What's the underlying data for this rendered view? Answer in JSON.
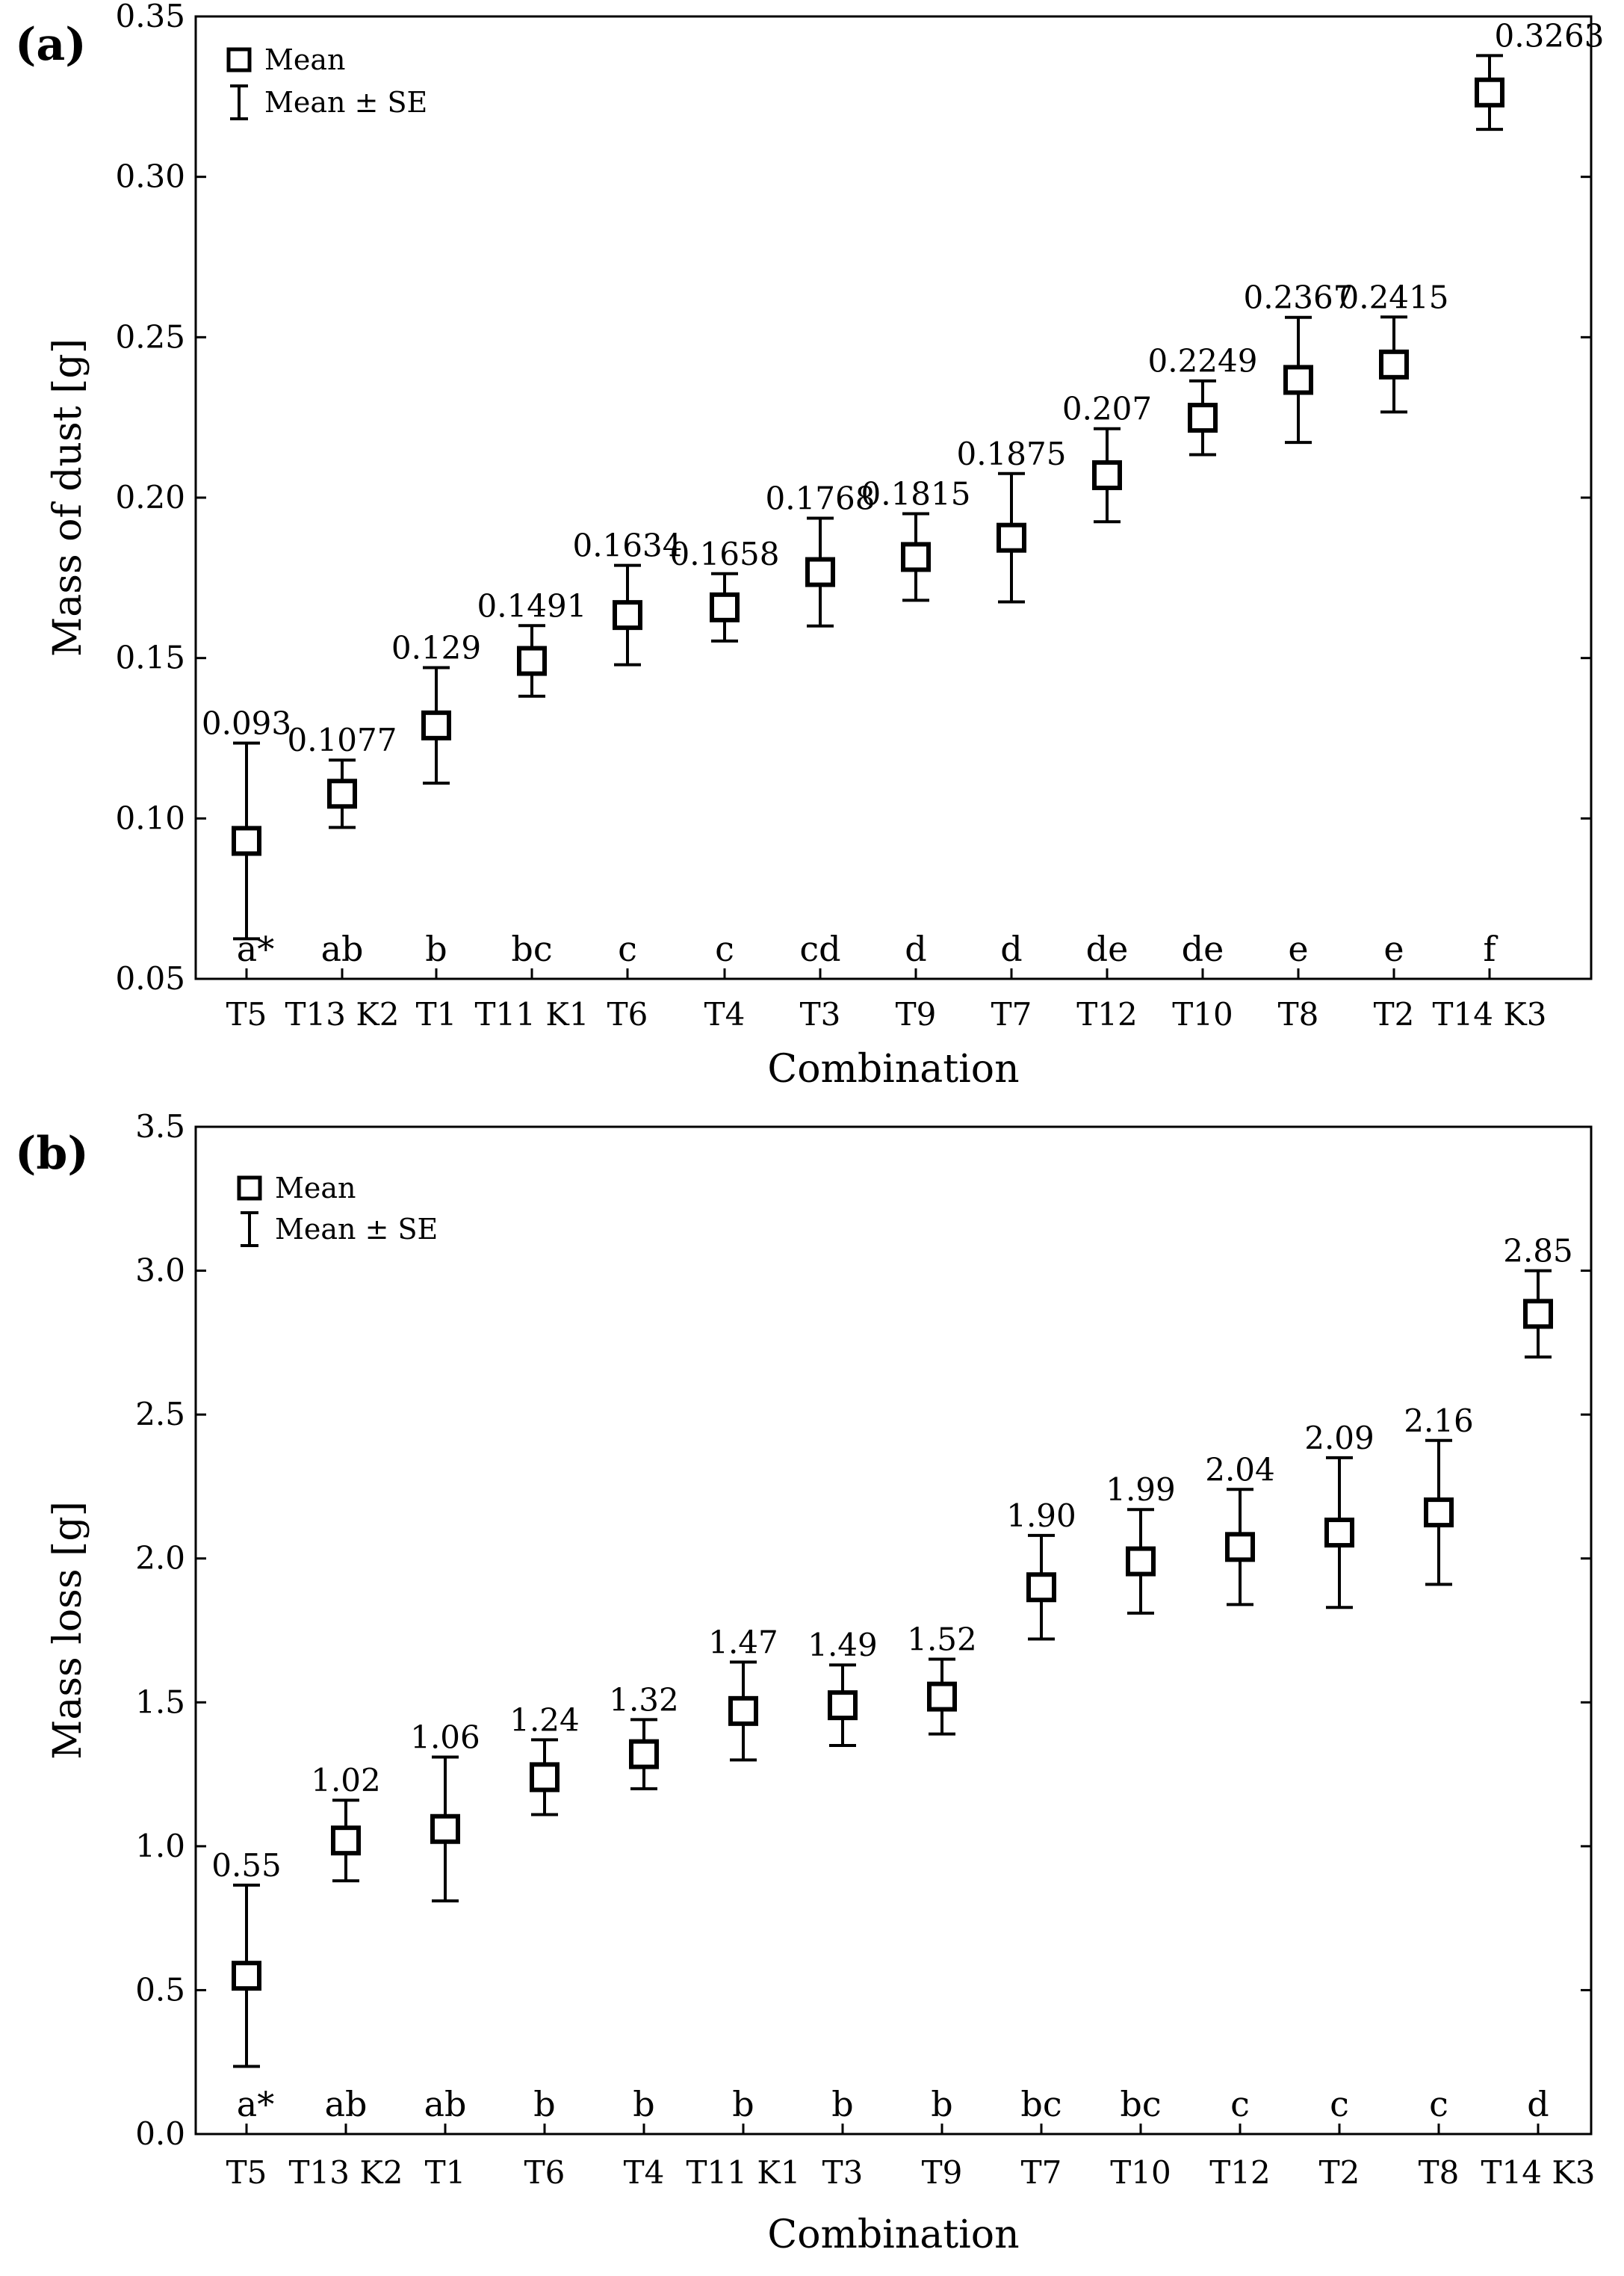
{
  "chart_data": [
    {
      "type": "scatter",
      "panel_label": "(a)",
      "xlabel": "Combination",
      "ylabel": "Mass of dust [g]",
      "ylim": [
        0.05,
        0.35
      ],
      "yticks": [
        "0.05",
        "0.10",
        "0.15",
        "0.20",
        "0.25",
        "0.30",
        "0.35"
      ],
      "legend": {
        "mean": "Mean",
        "se": "Mean ± SE",
        "placement": "top-left"
      },
      "categories": [
        "T5",
        "T13 K2",
        "T1",
        "T11 K1",
        "T6",
        "T4",
        "T3",
        "T9",
        "T7",
        "T12",
        "T10",
        "T8",
        "T2",
        "T14 K3"
      ],
      "value_labels": [
        "0.093",
        "0.1077",
        "0.129",
        "0.1491",
        "0.1634",
        "0.1658",
        "0.1768",
        "0.1815",
        "0.1875",
        "0.207",
        "0.2249",
        "0.2367",
        "0.2415",
        "0.3263"
      ],
      "values": [
        0.093,
        0.1077,
        0.129,
        0.1491,
        0.1634,
        0.1658,
        0.1768,
        0.1815,
        0.1875,
        0.207,
        0.2249,
        0.2367,
        0.2415,
        0.3263
      ],
      "se": [
        0.0305,
        0.0105,
        0.018,
        0.011,
        0.0155,
        0.0105,
        0.0168,
        0.0135,
        0.02,
        0.0145,
        0.0115,
        0.0195,
        0.0148,
        0.0115
      ],
      "groups": [
        "a*",
        "ab",
        "b",
        "bc",
        "c",
        "c",
        "cd",
        "d",
        "d",
        "de",
        "de",
        "e",
        "e",
        "f"
      ]
    },
    {
      "type": "scatter",
      "panel_label": "(b)",
      "xlabel": "Combination",
      "ylabel": "Mass loss [g]",
      "ylim": [
        0.0,
        3.5
      ],
      "yticks": [
        "0.0",
        "0.5",
        "1.0",
        "1.5",
        "2.0",
        "2.5",
        "3.0",
        "3.5"
      ],
      "legend": {
        "mean": "Mean",
        "se": "Mean ± SE",
        "placement": "top-left"
      },
      "categories": [
        "T5",
        "T13 K2",
        "T1",
        "T6",
        "T4",
        "T11 K1",
        "T3",
        "T9",
        "T7",
        "T10",
        "T12",
        "T2",
        "T8",
        "T14 K3"
      ],
      "value_labels": [
        "0.55",
        "1.02",
        "1.06",
        "1.24",
        "1.32",
        "1.47",
        "1.49",
        "1.52",
        "1.90",
        "1.99",
        "2.04",
        "2.09",
        "2.16",
        "2.85"
      ],
      "values": [
        0.55,
        1.02,
        1.06,
        1.24,
        1.32,
        1.47,
        1.49,
        1.52,
        1.9,
        1.99,
        2.04,
        2.09,
        2.16,
        2.85
      ],
      "se": [
        0.315,
        0.14,
        0.25,
        0.13,
        0.12,
        0.17,
        0.14,
        0.13,
        0.18,
        0.18,
        0.2,
        0.26,
        0.25,
        0.15
      ],
      "groups": [
        "a*",
        "ab",
        "ab",
        "b",
        "b",
        "b",
        "b",
        "b",
        "bc",
        "bc",
        "c",
        "c",
        "c",
        "d"
      ]
    }
  ]
}
